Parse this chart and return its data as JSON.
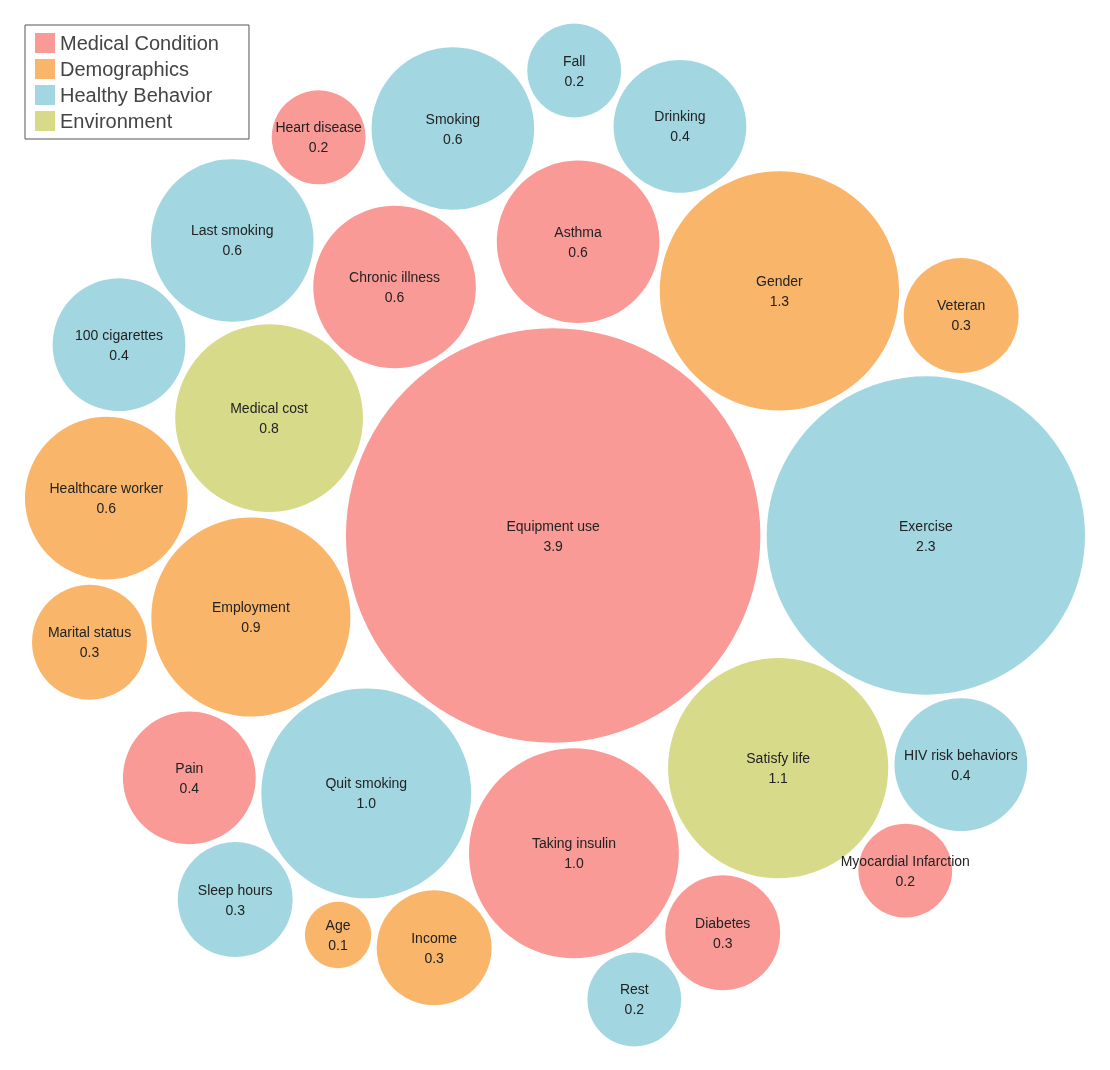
{
  "chart_data": {
    "type": "other",
    "categories": [
      "Equipment use",
      "Heart disease",
      "Diabetes",
      "Myocardial Infarction",
      "Chronic illness",
      "Pain",
      "Taking insulin",
      "Asthma",
      "Income",
      "Age",
      "Veteran",
      "Marital status",
      "Healthcare worker",
      "Employment",
      "Gender",
      "Last smoking",
      "Drinking",
      "HIV risk behaviors",
      "Exercise",
      "Quit smoking",
      "100 cigarettes",
      "Sleep hours",
      "Smoking",
      "Fall",
      "Rest",
      "Medical cost",
      "Satisfy life"
    ],
    "series": [
      {
        "name": "Medical Condition",
        "color": "#f99a97",
        "values": [
          3.9,
          0.2,
          0.3,
          0.2,
          0.6,
          0.4,
          1.0,
          0.6,
          null,
          null,
          null,
          null,
          null,
          null,
          null,
          null,
          null,
          null,
          null,
          null,
          null,
          null,
          null,
          null,
          null,
          null,
          null
        ],
        "value_labels": [
          "3.9",
          "0.2",
          "0.3",
          "0.2",
          "0.6",
          "0.4",
          "1.0",
          "0.6",
          null,
          null,
          null,
          null,
          null,
          null,
          null,
          null,
          null,
          null,
          null,
          null,
          null,
          null,
          null,
          null,
          null,
          null,
          null
        ]
      },
      {
        "name": "Demographics",
        "color": "#f9b56a",
        "values": [
          null,
          null,
          null,
          null,
          null,
          null,
          null,
          null,
          0.3,
          0.1,
          0.3,
          0.3,
          0.6,
          0.9,
          1.3,
          null,
          null,
          null,
          null,
          null,
          null,
          null,
          null,
          null,
          null,
          null,
          null
        ],
        "value_labels": [
          null,
          null,
          null,
          null,
          null,
          null,
          null,
          null,
          "0.3",
          "0.1",
          "0.3",
          "0.3",
          "0.6",
          "0.9",
          "1.3",
          null,
          null,
          null,
          null,
          null,
          null,
          null,
          null,
          null,
          null,
          null,
          null
        ]
      },
      {
        "name": "Healthy Behavior",
        "color": "#a2d7e2",
        "values": [
          null,
          null,
          null,
          null,
          null,
          null,
          null,
          null,
          null,
          null,
          null,
          null,
          null,
          null,
          null,
          0.6,
          0.4,
          0.4,
          2.3,
          1.0,
          0.4,
          0.3,
          0.6,
          0.2,
          0.2,
          null,
          null
        ],
        "value_labels": [
          null,
          null,
          null,
          null,
          null,
          null,
          null,
          null,
          null,
          null,
          null,
          null,
          null,
          null,
          null,
          "0.6",
          "0.4",
          "0.4",
          "2.3",
          "1.0",
          "0.4",
          "0.3",
          "0.6",
          "0.2",
          "0.2",
          null,
          null
        ]
      },
      {
        "name": "Environment",
        "color": "#d7da89",
        "values": [
          null,
          null,
          null,
          null,
          null,
          null,
          null,
          null,
          null,
          null,
          null,
          null,
          null,
          null,
          null,
          null,
          null,
          null,
          null,
          null,
          null,
          null,
          null,
          null,
          null,
          0.8,
          1.1
        ],
        "value_labels": [
          null,
          null,
          null,
          null,
          null,
          null,
          null,
          null,
          null,
          null,
          null,
          null,
          null,
          null,
          null,
          null,
          null,
          null,
          null,
          null,
          null,
          null,
          null,
          null,
          null,
          "0.8",
          "1.1"
        ]
      }
    ],
    "legend": "top left"
  }
}
